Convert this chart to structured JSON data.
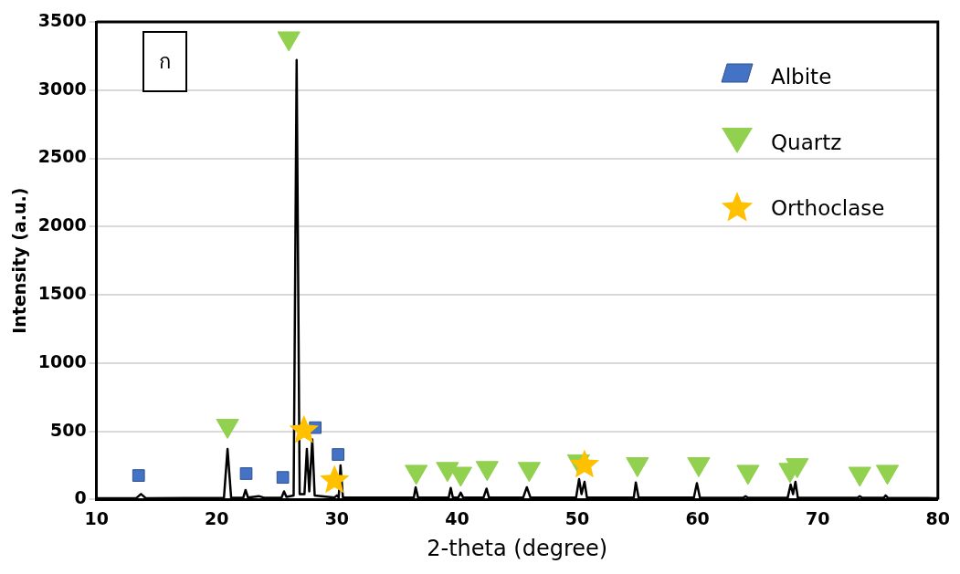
{
  "chart_data": {
    "type": "line",
    "xlabel": "2-theta (degree)",
    "ylabel": "Intensity (a.u.)",
    "annotations": [
      "ก"
    ],
    "xlim": [
      10,
      80
    ],
    "xticks": [
      10,
      20,
      30,
      40,
      50,
      60,
      70,
      80
    ],
    "ylim": [
      0,
      3500
    ],
    "yticks": [
      0,
      500,
      1000,
      1500,
      2000,
      2500,
      3000,
      3500
    ],
    "grid": "y",
    "legend": "top right",
    "series": [
      {
        "type": "line",
        "color": "#000000",
        "marker": "none",
        "x": [
          10,
          13.3,
          13.7,
          14.1,
          20.6,
          20.9,
          21.2,
          22.2,
          22.4,
          22.6,
          23.5,
          24,
          25.4,
          25.6,
          25.8,
          26.4,
          26.65,
          26.9,
          27.3,
          27.5,
          27.7,
          27.95,
          28.15,
          29.8,
          30,
          30.15,
          30.3,
          30.5,
          35,
          36.4,
          36.55,
          36.75,
          39.3,
          39.47,
          39.65,
          40.1,
          40.3,
          40.5,
          42.2,
          42.45,
          42.65,
          45.5,
          45.8,
          46.1,
          49.9,
          50.15,
          50.35,
          50.6,
          50.8,
          54.7,
          54.87,
          55.1,
          59.7,
          59.95,
          60.2,
          63.8,
          64,
          64.2,
          67.5,
          67.75,
          67.95,
          68.15,
          68.35,
          73.3,
          73.5,
          73.7,
          75.5,
          75.65,
          75.85,
          79.8,
          80
        ],
        "values": [
          10,
          10,
          40,
          10,
          12,
          370,
          12,
          12,
          70,
          15,
          25,
          12,
          15,
          60,
          20,
          30,
          3220,
          40,
          40,
          370,
          60,
          440,
          30,
          15,
          30,
          15,
          250,
          15,
          15,
          15,
          90,
          15,
          15,
          85,
          15,
          15,
          50,
          15,
          15,
          80,
          15,
          15,
          90,
          15,
          15,
          150,
          40,
          130,
          15,
          15,
          125,
          15,
          15,
          120,
          15,
          12,
          25,
          12,
          12,
          110,
          40,
          130,
          12,
          12,
          25,
          12,
          12,
          30,
          12,
          10,
          10
        ]
      },
      {
        "type": "scatter",
        "name": "Albite",
        "color": "#4472c4",
        "marker": "square",
        "x": [
          13.5,
          22.45,
          25.5,
          28.2,
          30.1
        ],
        "values": [
          176,
          190,
          162,
          527,
          330
        ]
      },
      {
        "type": "scatter",
        "name": "Quartz",
        "color": "#92d050",
        "marker": "triangle",
        "x": [
          20.9,
          26.0,
          36.6,
          39.2,
          40.3,
          42.5,
          46,
          50.1,
          55,
          60.1,
          64.2,
          67.7,
          68.3,
          73.5,
          75.8
        ],
        "values": [
          541,
          3380,
          204,
          225,
          190,
          232,
          225,
          281,
          260,
          260,
          204,
          218,
          253,
          190,
          204
        ]
      },
      {
        "type": "scatter",
        "name": "Orthoclase",
        "color": "#ffc000",
        "marker": "star",
        "x": [
          27.26,
          29.8,
          50.6
        ],
        "values": [
          506,
          140,
          253
        ]
      }
    ]
  }
}
